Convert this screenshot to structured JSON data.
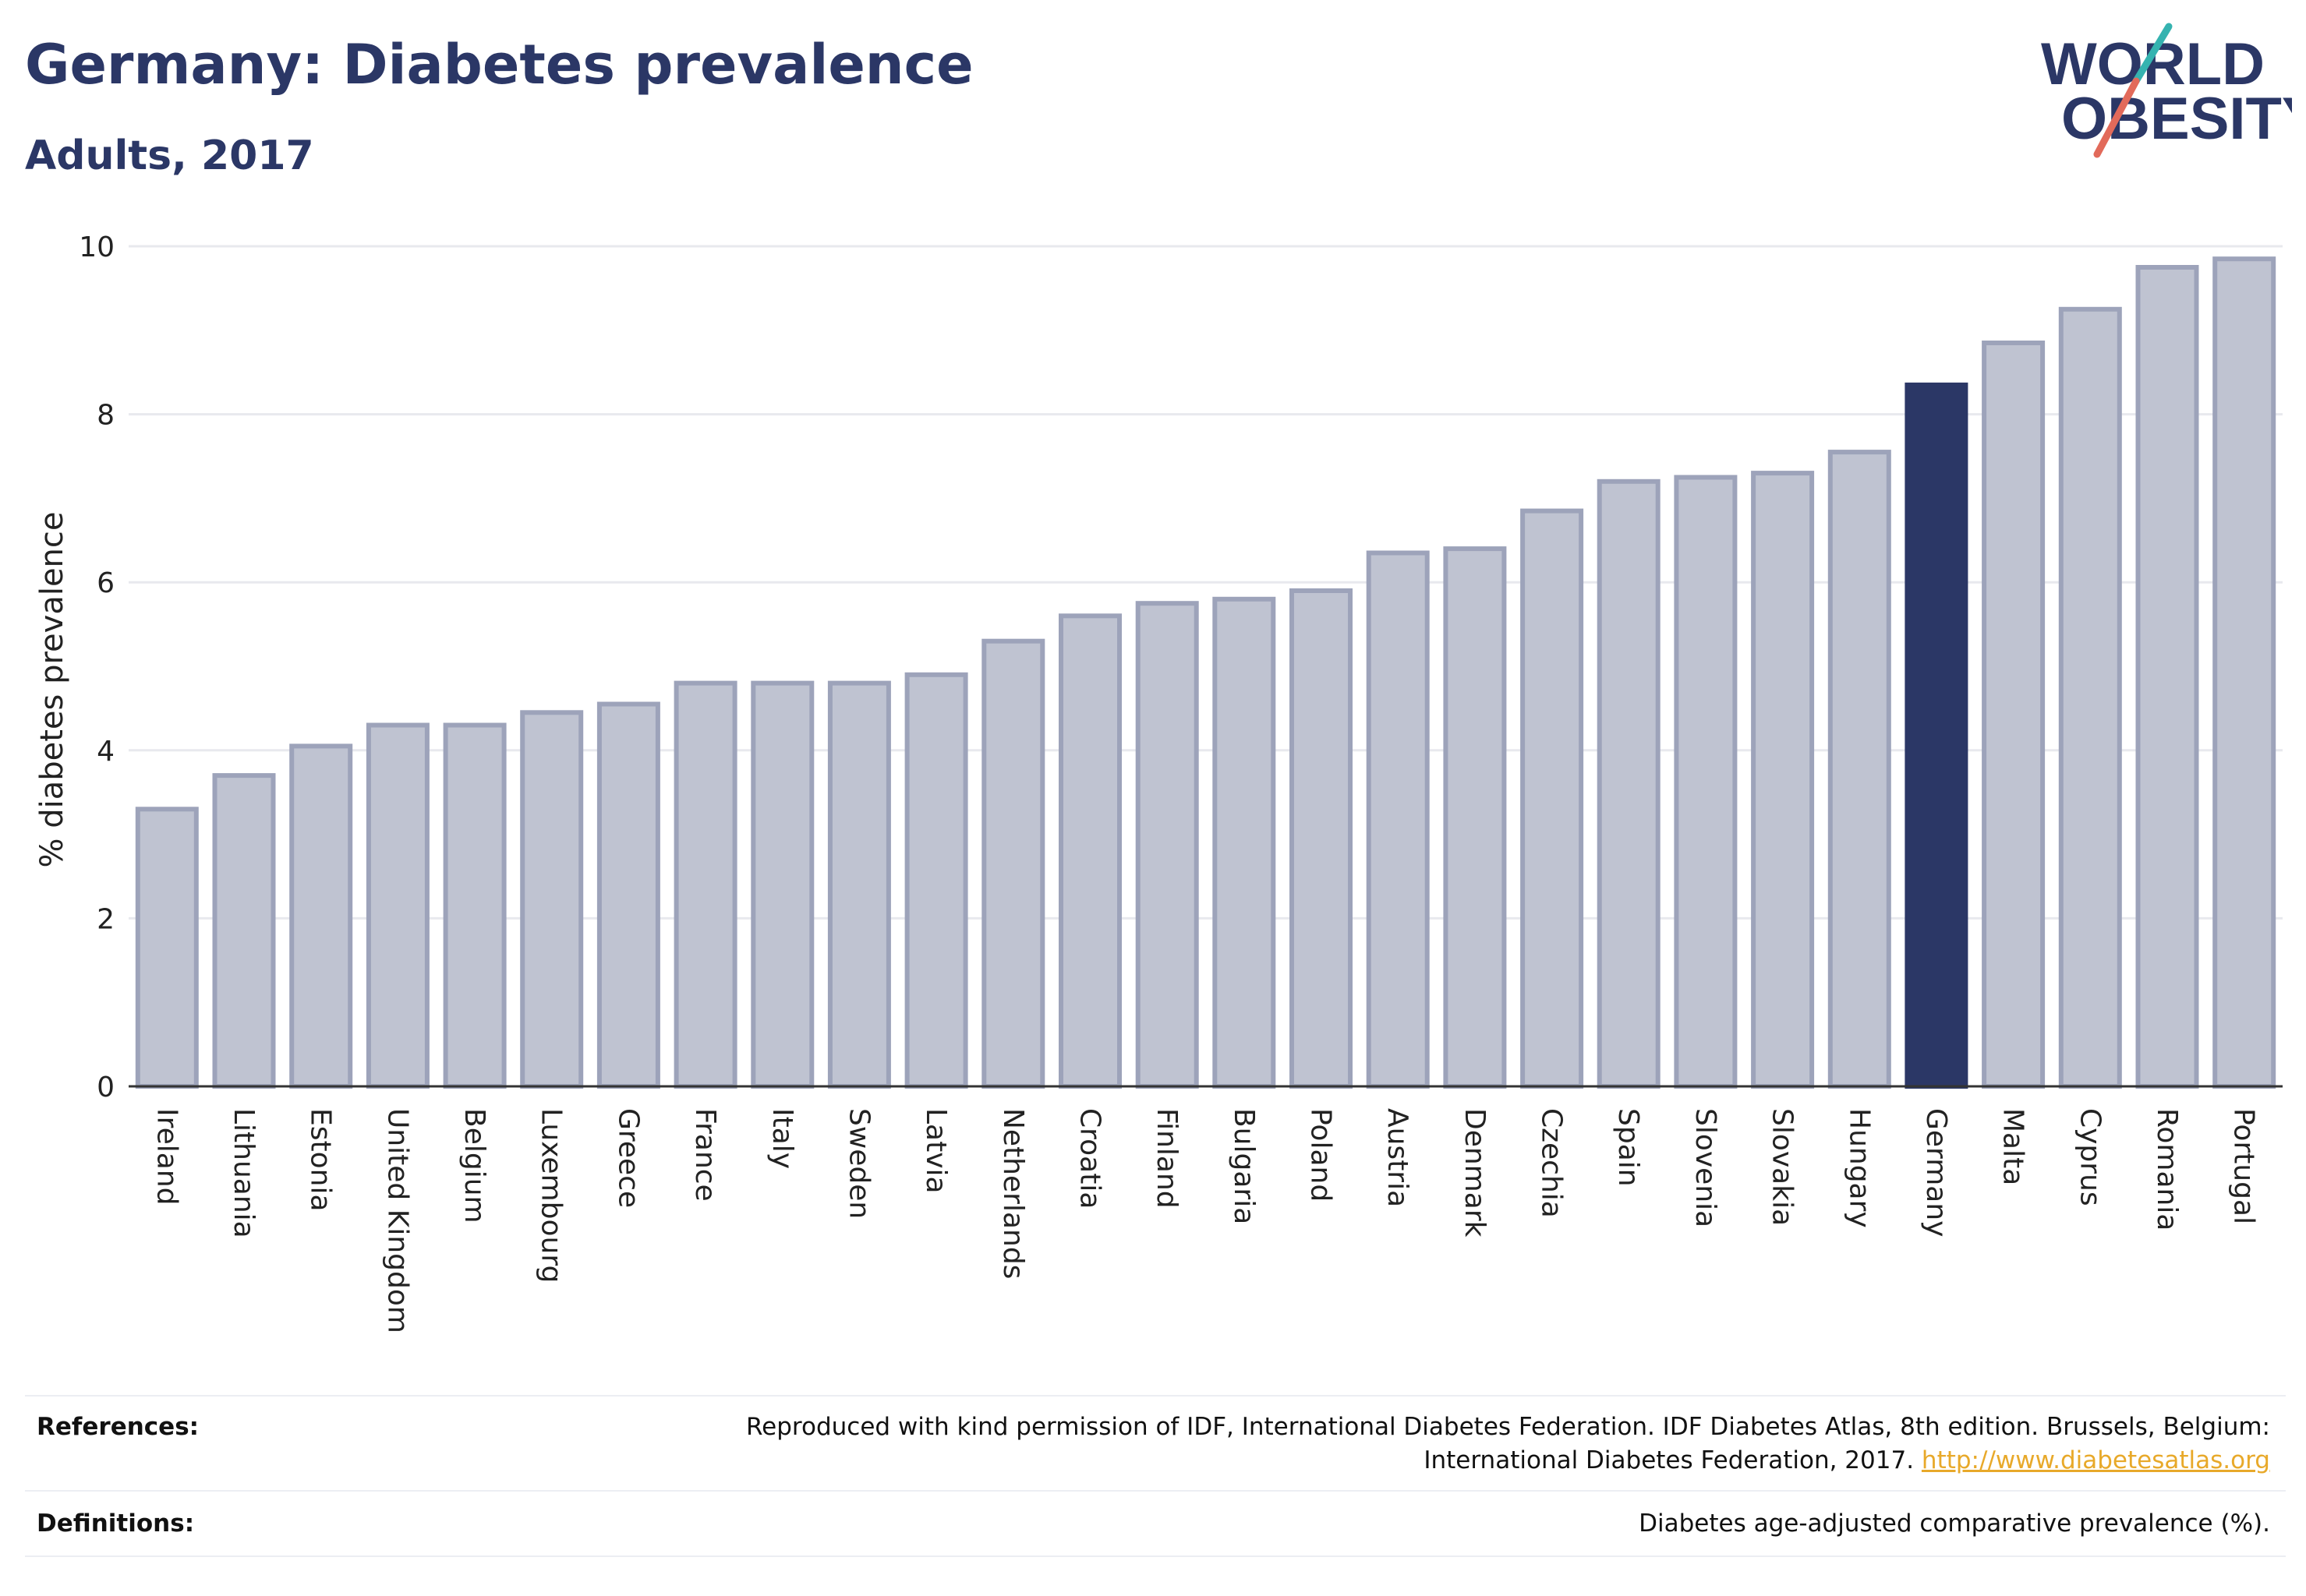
{
  "header": {
    "title": "Germany: Diabetes prevalence",
    "subtitle": "Adults, 2017"
  },
  "logo": {
    "line1": "WORLD",
    "line2": "OBESITY"
  },
  "chart_data": {
    "type": "bar",
    "title": "Germany: Diabetes prevalence",
    "subtitle": "Adults, 2017",
    "xlabel": "",
    "ylabel": "% diabetes prevalence",
    "ylim": [
      0,
      10
    ],
    "yticks": [
      0,
      2,
      4,
      6,
      8,
      10
    ],
    "highlight": "Germany",
    "grid": true,
    "colors": {
      "bar": "#bfc3d1",
      "bar_border": "#9da3ba",
      "highlight": "#2b3766",
      "gridline": "#e8e9ee",
      "axis": "#333333"
    },
    "categories": [
      "Ireland",
      "Lithuania",
      "Estonia",
      "United Kingdom",
      "Belgium",
      "Luxembourg",
      "Greece",
      "France",
      "Italy",
      "Sweden",
      "Latvia",
      "Netherlands",
      "Croatia",
      "Finland",
      "Bulgaria",
      "Poland",
      "Austria",
      "Denmark",
      "Czechia",
      "Spain",
      "Slovenia",
      "Slovakia",
      "Hungary",
      "Germany",
      "Malta",
      "Cyprus",
      "Romania",
      "Portugal"
    ],
    "values": [
      3.3,
      3.7,
      4.05,
      4.3,
      4.3,
      4.45,
      4.55,
      4.8,
      4.8,
      4.8,
      4.9,
      5.3,
      5.6,
      5.75,
      5.8,
      5.9,
      6.35,
      6.4,
      6.85,
      7.2,
      7.25,
      7.3,
      7.55,
      8.35,
      8.85,
      9.25,
      9.75,
      9.85
    ]
  },
  "footer": {
    "references_label": "References:",
    "references_text_line1": "Reproduced with kind permission of IDF, International Diabetes Federation. IDF Diabetes Atlas, 8th edition. Brussels, Belgium:",
    "references_text_line2": "International Diabetes Federation, 2017.",
    "references_link": "http://www.diabetesatlas.org",
    "definitions_label": "Definitions:",
    "definitions_text": "Diabetes age-adjusted comparative prevalence (%)."
  }
}
